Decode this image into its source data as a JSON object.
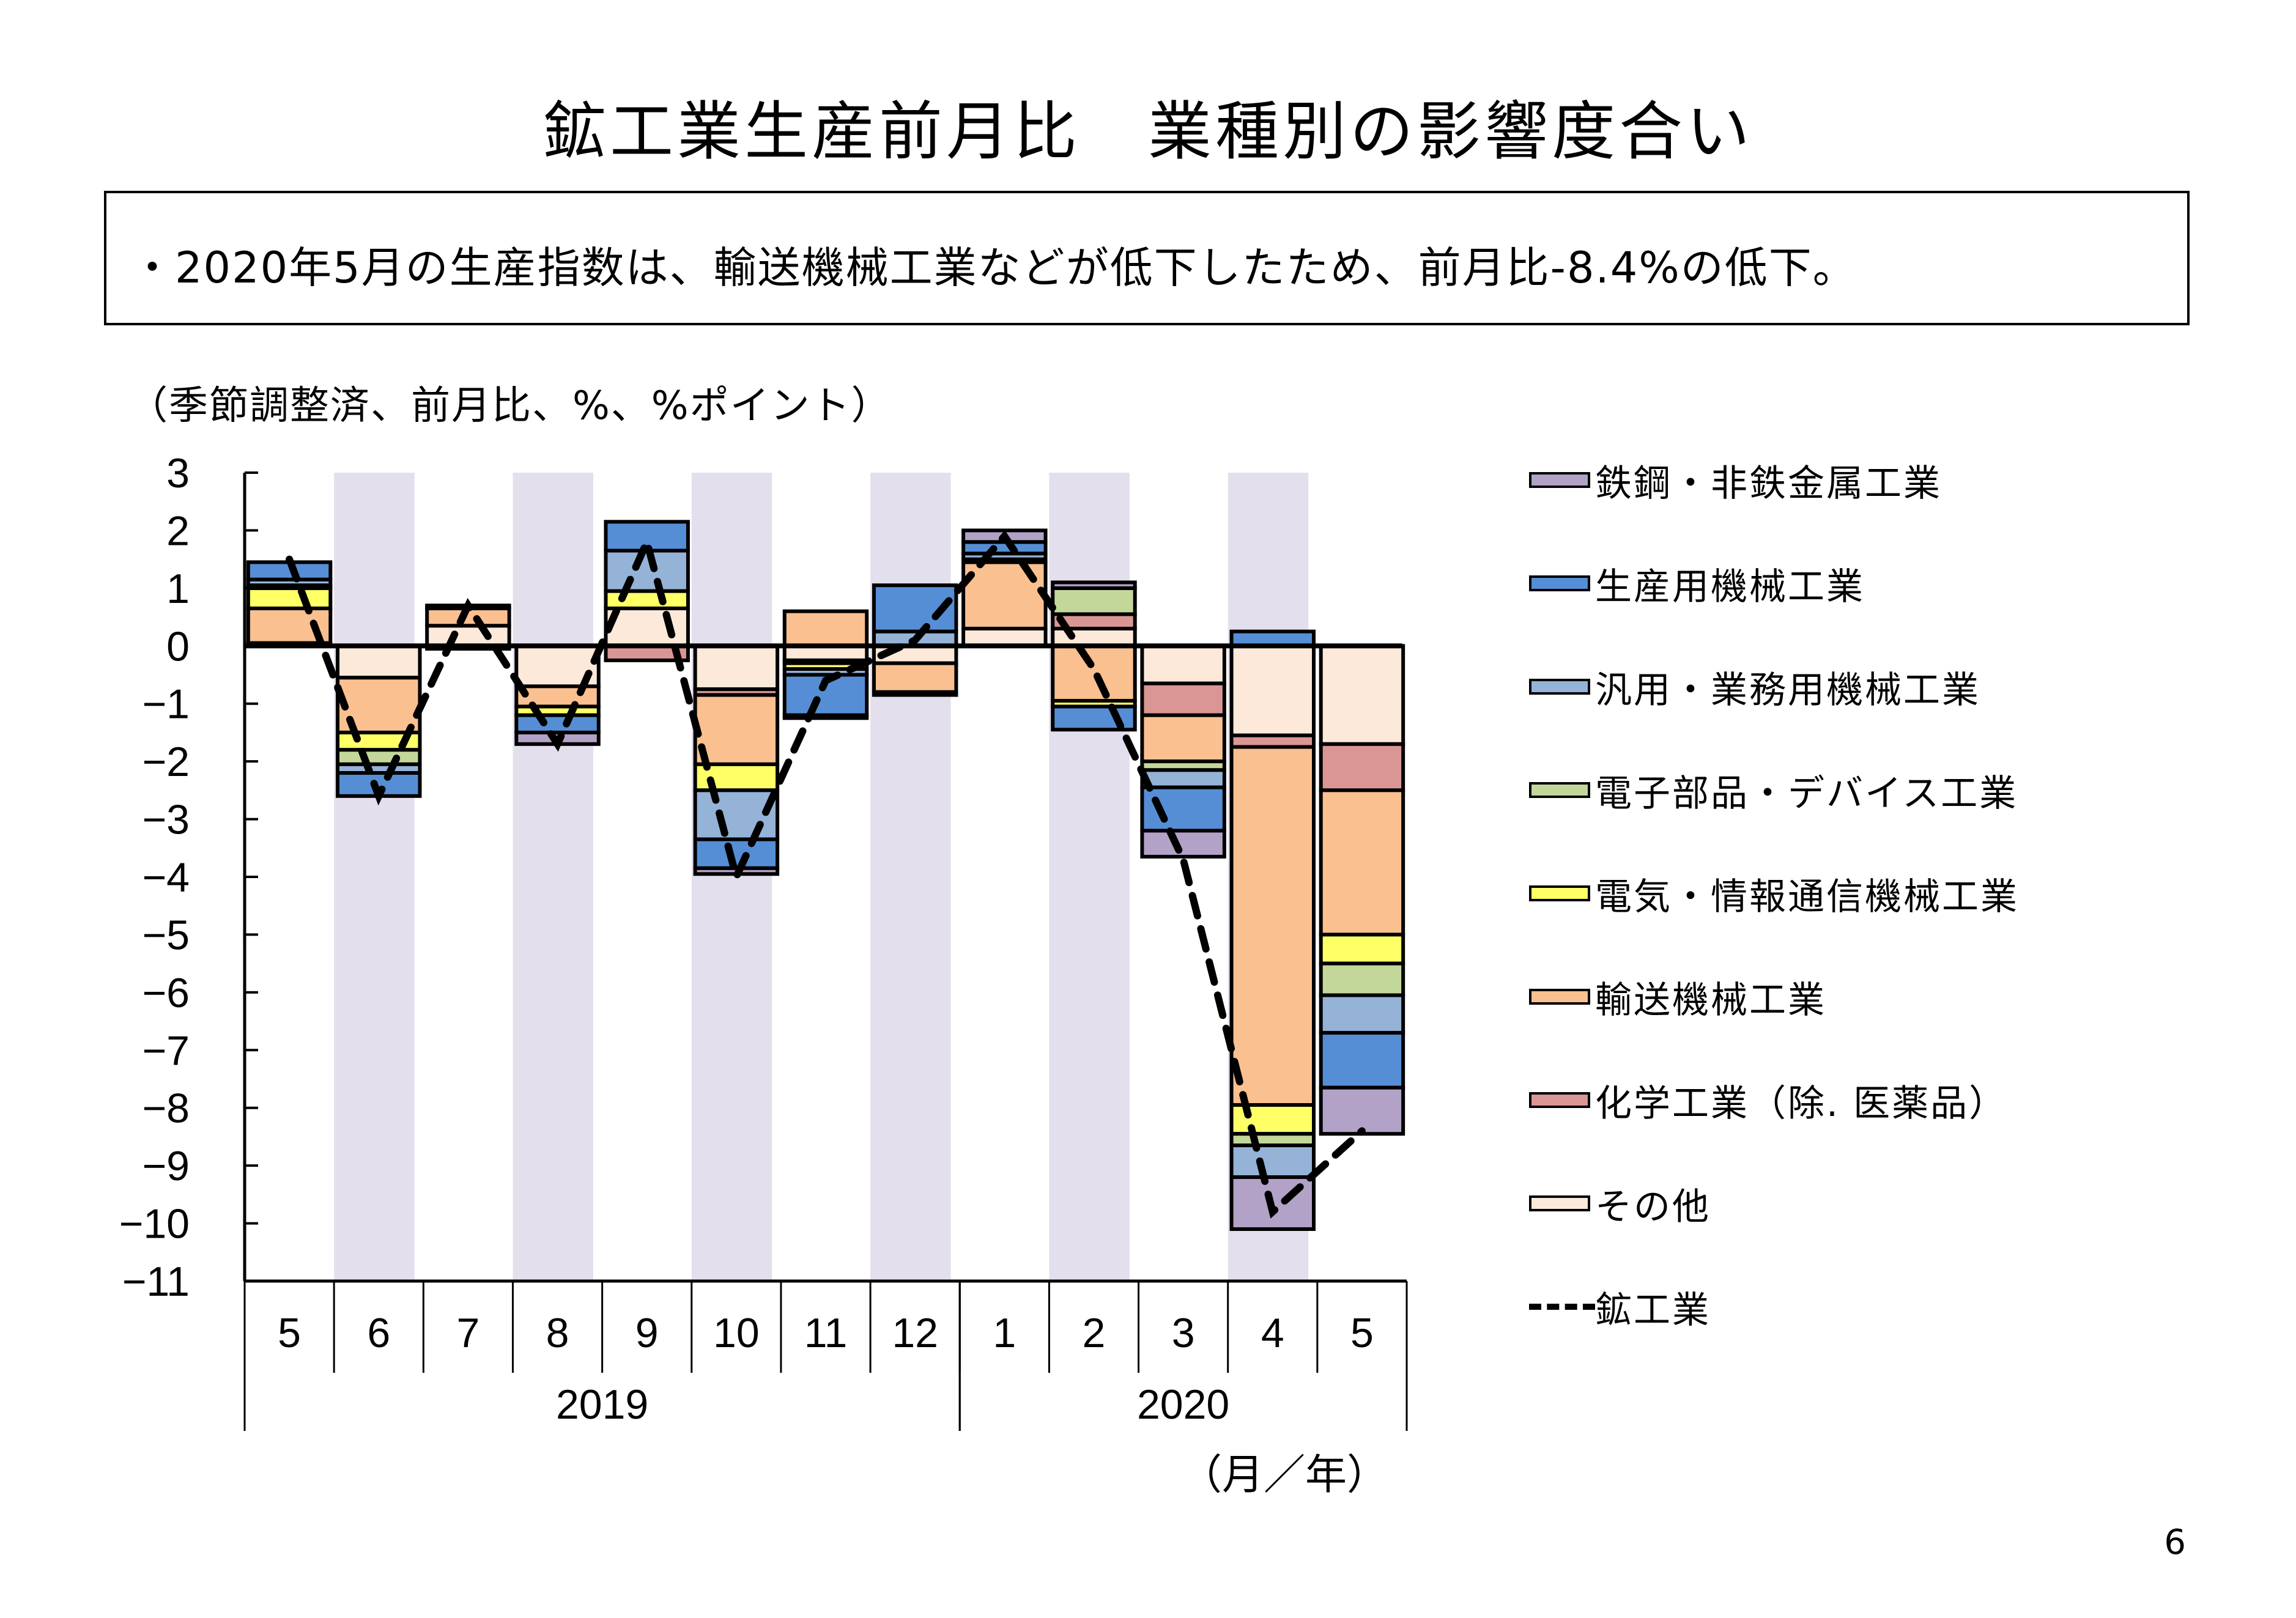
{
  "page": {
    "title": "鉱工業生産前月比　業種別の影響度合い",
    "summary": "・2020年5月の生産指数は、輸送機械工業などが低下したため、前月比-8.4%の低下。",
    "unit_note": "（季節調整済、前月比、%、%ポイント）",
    "page_number": "6"
  },
  "chart_data": {
    "type": "bar",
    "stacked": true,
    "title": "",
    "ylabel": "",
    "xlabel": "（月／年）",
    "ylim": [
      -11,
      3
    ],
    "yticks": [
      3,
      2,
      1,
      0,
      -1,
      -2,
      -3,
      -4,
      -5,
      -6,
      -7,
      -8,
      -9,
      -10,
      -11
    ],
    "grid": false,
    "legend_position": "right",
    "categories": [
      "5",
      "6",
      "7",
      "8",
      "9",
      "10",
      "11",
      "12",
      "1",
      "2",
      "3",
      "4",
      "5"
    ],
    "year_groups": [
      {
        "label": "2019",
        "span": 8
      },
      {
        "label": "2020",
        "span": 5
      }
    ],
    "shaded_categories": [
      1,
      3,
      5,
      7,
      9,
      11
    ],
    "series": [
      {
        "name": "その他",
        "color": "#FDE9D9",
        "values": [
          0.05,
          -0.55,
          0.35,
          -0.7,
          0.65,
          -0.75,
          -0.25,
          -0.3,
          0.3,
          0.3,
          -0.65,
          -1.55,
          -1.7
        ]
      },
      {
        "name": "化学工業（除. 医薬品）",
        "color": "#DA9694",
        "values": [
          0.0,
          0.0,
          -0.05,
          0.0,
          -0.25,
          -0.1,
          -0.05,
          0.0,
          0.0,
          0.25,
          -0.55,
          -0.2,
          -0.8
        ]
      },
      {
        "name": "輸送機械工業",
        "color": "#FAC090",
        "values": [
          0.6,
          -0.95,
          0.3,
          -0.35,
          0.0,
          -1.2,
          0.6,
          -0.5,
          1.15,
          -0.95,
          -0.8,
          -6.2,
          -2.5
        ]
      },
      {
        "name": "電気・情報通信機械工業",
        "color": "#FFFF66",
        "values": [
          0.35,
          -0.3,
          0.0,
          -0.15,
          0.3,
          -0.45,
          -0.1,
          0.0,
          0.0,
          -0.1,
          0.0,
          -0.5,
          -0.5
        ]
      },
      {
        "name": "電子部品・デバイス工業",
        "color": "#C4D79B",
        "values": [
          0.05,
          -0.25,
          0.0,
          0.0,
          0.0,
          0.0,
          0.0,
          0.0,
          0.05,
          0.45,
          -0.15,
          -0.2,
          -0.55
        ]
      },
      {
        "name": "汎用・業務用機械工業",
        "color": "#95B3D7",
        "values": [
          0.1,
          -0.15,
          0.0,
          0.0,
          0.7,
          -0.85,
          -0.1,
          0.25,
          0.1,
          0.0,
          -0.3,
          -0.55,
          -0.65
        ]
      },
      {
        "name": "生産用機械工業",
        "color": "#558ED5",
        "values": [
          0.3,
          -0.4,
          0.0,
          -0.3,
          0.5,
          -0.5,
          -0.7,
          0.8,
          0.2,
          -0.4,
          -0.75,
          0.25,
          -0.95
        ]
      },
      {
        "name": "鉄鋼・非鉄金属工業",
        "color": "#B3A2C7",
        "values": [
          0.0,
          0.0,
          0.05,
          -0.2,
          0.0,
          -0.1,
          -0.05,
          -0.05,
          0.2,
          0.1,
          -0.45,
          -0.9,
          -0.8
        ]
      }
    ],
    "line_series": {
      "name": "鉱工業",
      "style": "dashed",
      "color": "#000000",
      "values": [
        1.5,
        -2.6,
        0.7,
        -1.7,
        1.8,
        -4.0,
        -0.6,
        0.1,
        1.9,
        -0.4,
        -3.7,
        -9.8,
        -8.4
      ]
    },
    "legend": [
      {
        "label": "鉄鋼・非鉄金属工業",
        "color": "#B3A2C7",
        "kind": "bar"
      },
      {
        "label": "生産用機械工業",
        "color": "#558ED5",
        "kind": "bar"
      },
      {
        "label": "汎用・業務用機械工業",
        "color": "#95B3D7",
        "kind": "bar"
      },
      {
        "label": "電子部品・デバイス工業",
        "color": "#C4D79B",
        "kind": "bar"
      },
      {
        "label": "電気・情報通信機械工業",
        "color": "#FFFF66",
        "kind": "bar"
      },
      {
        "label": "輸送機械工業",
        "color": "#FAC090",
        "kind": "bar"
      },
      {
        "label": "化学工業（除. 医薬品）",
        "color": "#DA9694",
        "kind": "bar"
      },
      {
        "label": "その他",
        "color": "#FDE9D9",
        "kind": "bar"
      },
      {
        "label": "鉱工業",
        "color": "#000000",
        "kind": "dashed-line"
      }
    ],
    "shade_color": "#E4DFEC"
  }
}
